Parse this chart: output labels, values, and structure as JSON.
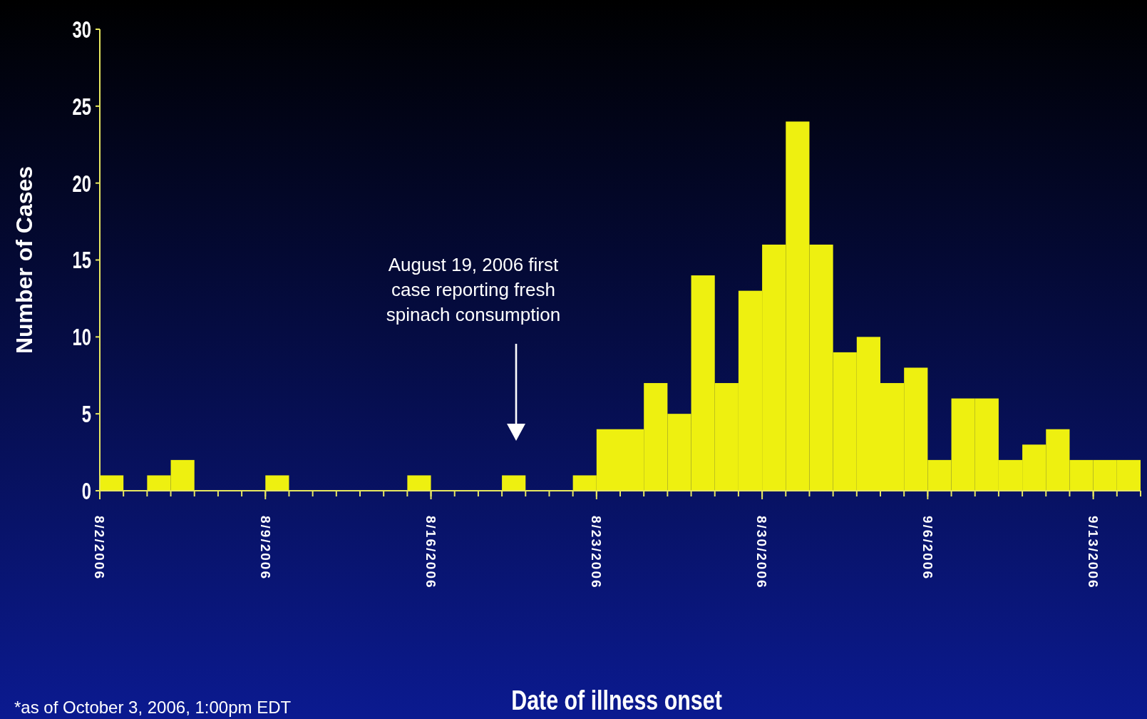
{
  "chart_data": {
    "type": "bar",
    "xlabel": "Date of illness onset",
    "ylabel": "Number of Cases",
    "color": "#eef010",
    "x": [
      "2006-08-02T12:00",
      "2006-08-03T12:00",
      "2006-08-04T12:00",
      "2006-08-05T12:00",
      "2006-08-06T12:00",
      "2006-08-07T12:00",
      "2006-08-08T12:00",
      "2006-08-09T12:00",
      "2006-08-10T12:00",
      "2006-08-11T12:00",
      "2006-08-12T12:00",
      "2006-08-13T12:00",
      "2006-08-14T12:00",
      "2006-08-15T12:00",
      "2006-08-16T12:00",
      "2006-08-17T12:00",
      "2006-08-18T12:00",
      "2006-08-19T12:00",
      "2006-08-20T12:00",
      "2006-08-21T12:00",
      "2006-08-22T12:00",
      "2006-08-23T12:00",
      "2006-08-24T12:00",
      "2006-08-25T12:00",
      "2006-08-26T12:00",
      "2006-08-27T12:00",
      "2006-08-28T12:00",
      "2006-08-29T12:00",
      "2006-08-30T12:00",
      "2006-08-31T12:00",
      "2006-09-01T12:00",
      "2006-09-02T12:00",
      "2006-09-03T12:00",
      "2006-09-04T12:00",
      "2006-09-05T12:00",
      "2006-09-06T12:00",
      "2006-09-07T12:00",
      "2006-09-08T12:00",
      "2006-09-09T12:00",
      "2006-09-10T12:00",
      "2006-09-11T12:00",
      "2006-09-12T12:00",
      "2006-09-13T12:00",
      "2006-09-14T12:00"
    ],
    "values": [
      1,
      0,
      1,
      2,
      0,
      0,
      0,
      1,
      0,
      0,
      0,
      0,
      0,
      1,
      0,
      0,
      0,
      1,
      0,
      0,
      1,
      4,
      4,
      7,
      5,
      14,
      7,
      13,
      16,
      24,
      16,
      9,
      10,
      7,
      8,
      2,
      6,
      6,
      2,
      3,
      4,
      2,
      2,
      2
    ],
    "xlim": [
      "2006-08-02",
      "2006-09-15"
    ],
    "xticks": [
      {
        "value": "2006-08-02",
        "label": "8/2/2006"
      },
      {
        "value": "2006-08-09",
        "label": "8/9/2006"
      },
      {
        "value": "2006-08-16",
        "label": "8/16/2006"
      },
      {
        "value": "2006-08-23",
        "label": "8/23/2006"
      },
      {
        "value": "2006-08-30",
        "label": "8/30/2006"
      },
      {
        "value": "2006-09-06",
        "label": "9/6/2006"
      },
      {
        "value": "2006-09-13",
        "label": "9/13/2006"
      }
    ],
    "ylim": [
      0,
      30
    ],
    "yticks": [
      0,
      5,
      10,
      15,
      20,
      25,
      30
    ],
    "grid": false,
    "annotations": [
      "August 19, 2006 first case reporting fresh spinach consumption",
      "*as of October 3, 2006, 1:00pm EDT"
    ]
  }
}
